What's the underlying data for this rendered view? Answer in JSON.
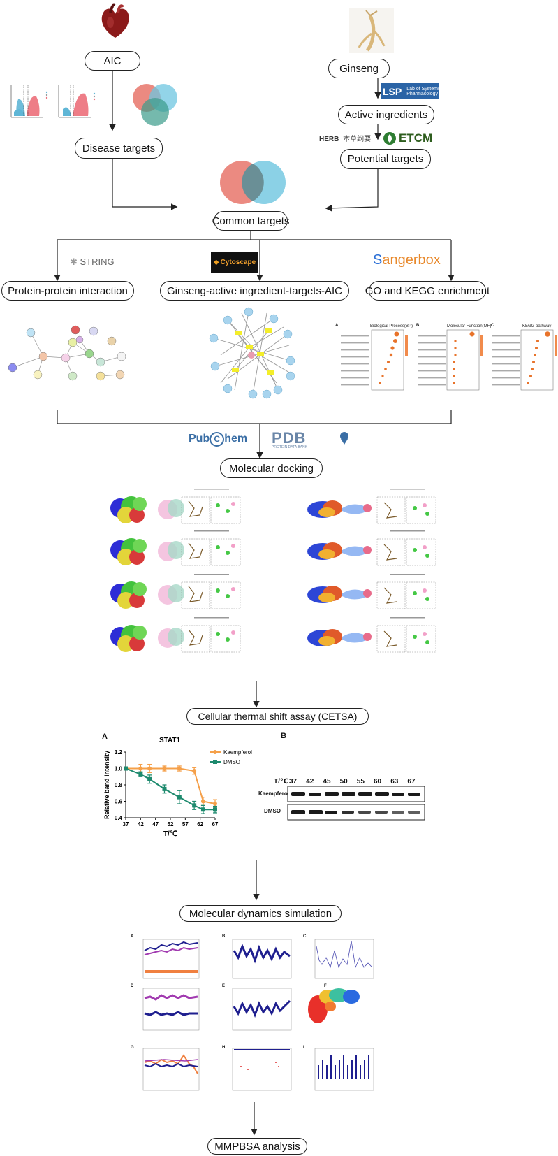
{
  "boxes": {
    "aic": "AIC",
    "ginseng": "Ginseng",
    "disease_targets": "Disease targets",
    "active_ingredients": "Active ingredients",
    "potential_targets": "Potential targets",
    "common_targets": "Common targets",
    "ppi": "Protein-protein interaction",
    "network": "Ginseng-active ingredient-targets-AIC",
    "enrichment": "GO and KEGG enrichment",
    "docking": "Molecular docking",
    "cetsa": "Cellular thermal shift assay (CETSA)",
    "md": "Molecular dynamics simulation",
    "mmpbsa": "MMPBSA analysis"
  },
  "logos": {
    "lsp_mark": "LSP",
    "lsp_text1": "Lab of Systems",
    "lsp_text2": "Pharmacology",
    "herb": "HERB",
    "herb_cn": "本草纲要",
    "etcm": "ETCM",
    "string": "STRING",
    "cytoscape": "Cytoscape",
    "sangerbox_s": "S",
    "sangerbox_rest": "angerbox",
    "pubchem_a": "Pub",
    "pubchem_c": "C",
    "pubchem_b": "hem",
    "pdb": "PDB",
    "pdb_sub": "PROTEIN DATA BANK"
  },
  "enrichment_panels": {
    "a_letter": "A",
    "a_title": "Biological Process(BP)",
    "b_letter": "B",
    "b_title": "Molecular Function(MF)",
    "c_letter": "C",
    "c_title": "KEGG pathway"
  },
  "cetsa": {
    "panel_a": "A",
    "panel_b": "B",
    "blot_header": "T/℃",
    "blot_temps": [
      "37",
      "42",
      "45",
      "50",
      "55",
      "60",
      "63",
      "67"
    ],
    "blot_rows": [
      "Kaempferol",
      "DMSO"
    ]
  },
  "md_panels": [
    "A",
    "B",
    "C",
    "D",
    "E",
    "F",
    "G",
    "H",
    "I"
  ],
  "colors": {
    "kaempferol": "#f5a04a",
    "dmso": "#1e8a6e",
    "venn_red": "#e8756b",
    "venn_blue": "#6ec6e0",
    "md_navy": "#1f1f8f",
    "md_purple": "#a13ab0"
  },
  "chart_data": {
    "type": "line",
    "title": "STAT1",
    "xlabel": "T/℃",
    "ylabel": "Relative band intensity",
    "x": [
      37,
      42,
      47,
      52,
      57,
      62,
      67
    ],
    "ylim": [
      0.4,
      1.2
    ],
    "yticks": [
      "0.4",
      "0.6",
      "0.8",
      "1.0",
      "1.2"
    ],
    "xticks": [
      "37",
      "42",
      "47",
      "52",
      "57",
      "62",
      "67"
    ],
    "legend_position": "top-right",
    "series": [
      {
        "name": "Kaempferol",
        "color": "#f5a04a",
        "x": [
          37,
          42,
          45,
          50,
          55,
          60,
          63,
          67
        ],
        "values": [
          1.0,
          1.0,
          1.0,
          1.0,
          1.0,
          0.97,
          0.6,
          0.57
        ],
        "errors": [
          0.01,
          0.05,
          0.05,
          0.03,
          0.03,
          0.04,
          0.05,
          0.05
        ]
      },
      {
        "name": "DMSO",
        "color": "#1e8a6e",
        "x": [
          37,
          42,
          45,
          50,
          55,
          60,
          63,
          67
        ],
        "values": [
          1.0,
          0.93,
          0.87,
          0.75,
          0.65,
          0.55,
          0.5,
          0.5
        ],
        "errors": [
          0.01,
          0.03,
          0.05,
          0.05,
          0.08,
          0.05,
          0.05,
          0.04
        ]
      }
    ]
  }
}
